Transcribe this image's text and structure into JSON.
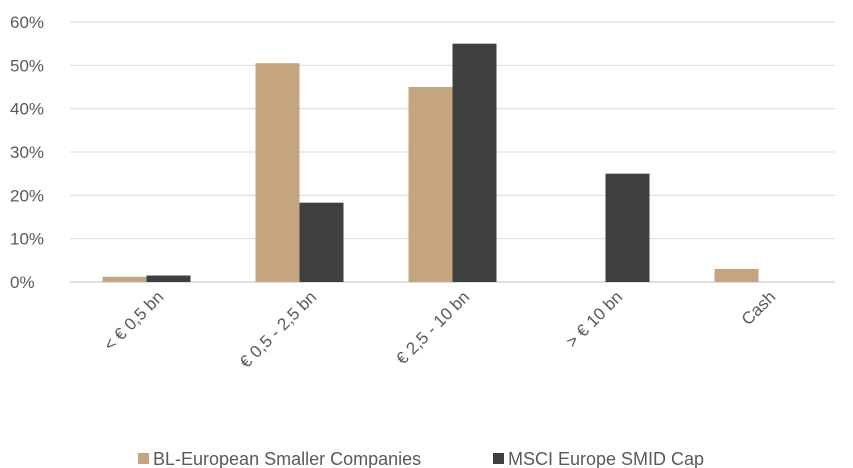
{
  "chart_data": {
    "type": "bar",
    "categories": [
      "< € 0,5 bn",
      "€ 0,5 - 2,5 bn",
      "€ 2,5 - 10 bn",
      "> € 10 bn",
      "Cash"
    ],
    "series": [
      {
        "name": "BL-European Smaller Companies",
        "color": "#C4A57F",
        "values": [
          1.2,
          50.5,
          45.0,
          0,
          3.0
        ]
      },
      {
        "name": "MSCI Europe SMID Cap",
        "color": "#3F3F3F",
        "values": [
          1.5,
          18.3,
          55.0,
          25.0,
          0
        ]
      }
    ],
    "y_ticks": [
      "0%",
      "10%",
      "20%",
      "30%",
      "40%",
      "50%",
      "60%"
    ],
    "ylim": [
      0,
      60
    ],
    "grid": true,
    "legend_position": "bottom"
  }
}
